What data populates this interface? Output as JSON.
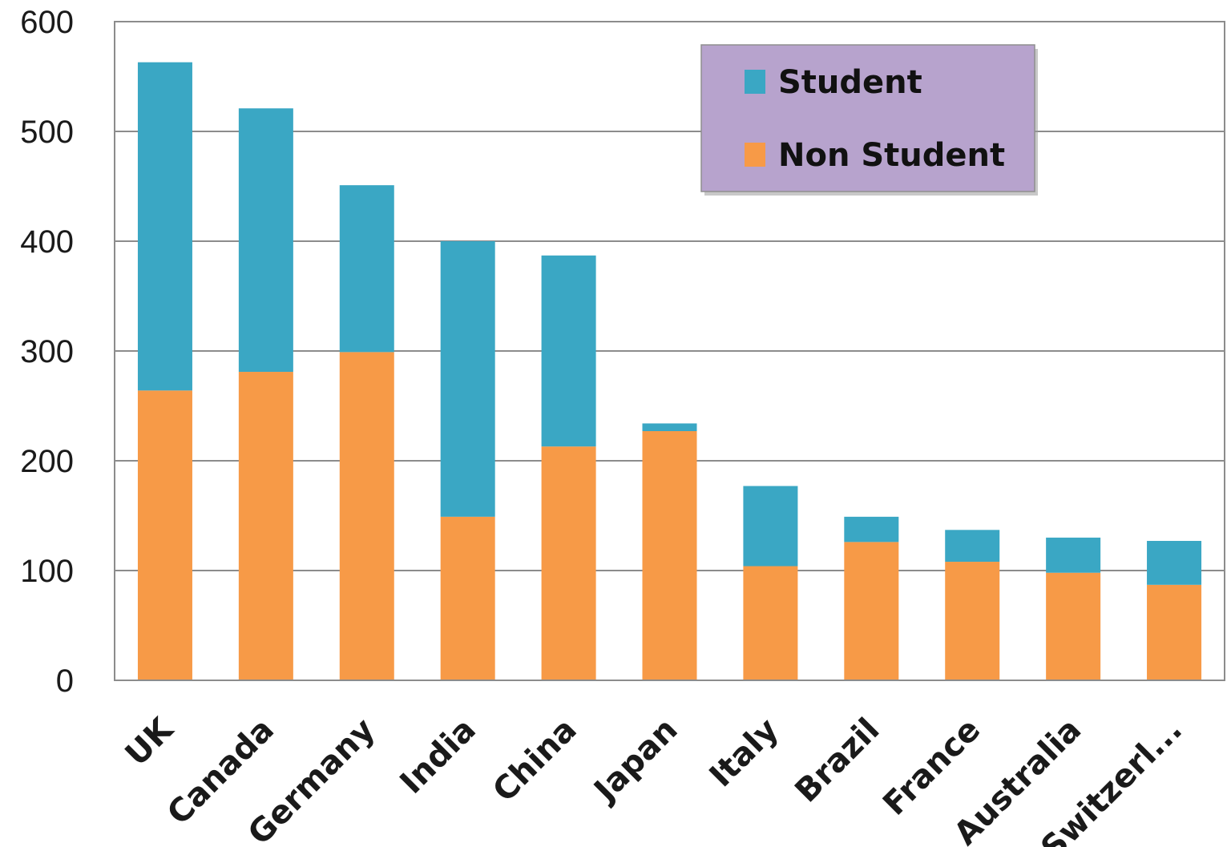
{
  "chart_data": {
    "type": "bar",
    "stacked": true,
    "categories": [
      "UK",
      "Canada",
      "Germany",
      "India",
      "China",
      "Japan",
      "Italy",
      "Brazil",
      "France",
      "Australia",
      "Switzerl..."
    ],
    "series": [
      {
        "name": "Non Student",
        "color": "#f79a47",
        "values": [
          264,
          281,
          299,
          149,
          213,
          227,
          104,
          126,
          108,
          98,
          87
        ]
      },
      {
        "name": "Student",
        "color": "#3aa7c4",
        "values": [
          299,
          240,
          152,
          251,
          174,
          7,
          73,
          23,
          29,
          32,
          40
        ]
      }
    ],
    "ylim": [
      0,
      600
    ],
    "yticks": [
      0,
      100,
      200,
      300,
      400,
      500,
      600
    ],
    "grid": true,
    "legend": {
      "position": "top-right",
      "entries": [
        "Student",
        "Non Student"
      ],
      "background": "#b7a3cd"
    },
    "title": "",
    "xlabel": "",
    "ylabel": ""
  }
}
